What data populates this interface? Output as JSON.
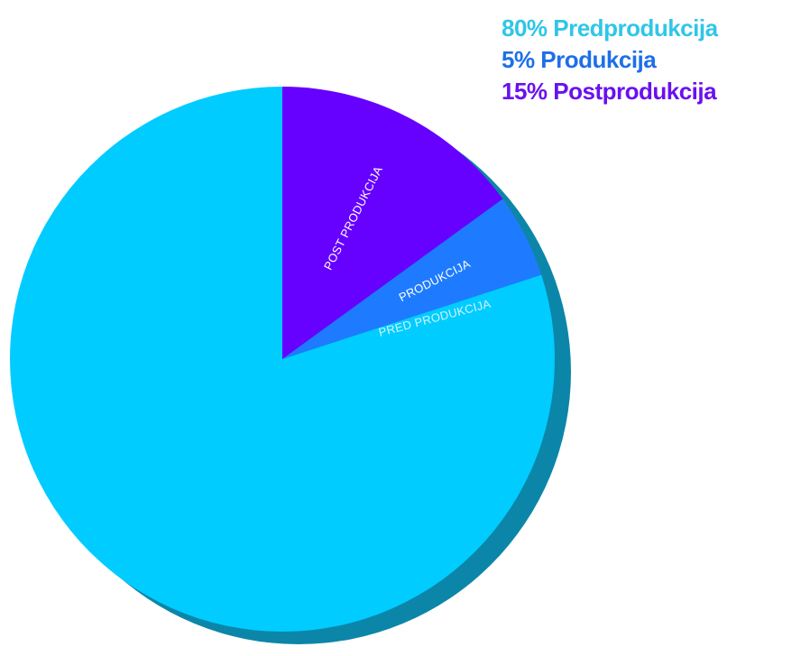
{
  "chart_data": {
    "type": "pie",
    "slices": [
      {
        "label": "PRED PRODUKCIJA",
        "value": 80,
        "color": "#00CCFF",
        "label_color": "#CFF4FF"
      },
      {
        "label": "PRODUKCIJA",
        "value": 5,
        "color": "#1E7BFF",
        "label_color": "#FFFFFF"
      },
      {
        "label": "POST PRODUKCIJA",
        "value": 15,
        "color": "#6600FF",
        "label_color": "#FFFFFF"
      }
    ],
    "shadow_color": "#0B86A8",
    "legend": {
      "position": "top-right",
      "entries": [
        {
          "text": "80% Predprodukcija",
          "color": "#2FC6E8"
        },
        {
          "text": "5% Produkcija",
          "color": "#1E6FE8"
        },
        {
          "text": "15% Postprodukcija",
          "color": "#6A10F0"
        }
      ]
    }
  }
}
